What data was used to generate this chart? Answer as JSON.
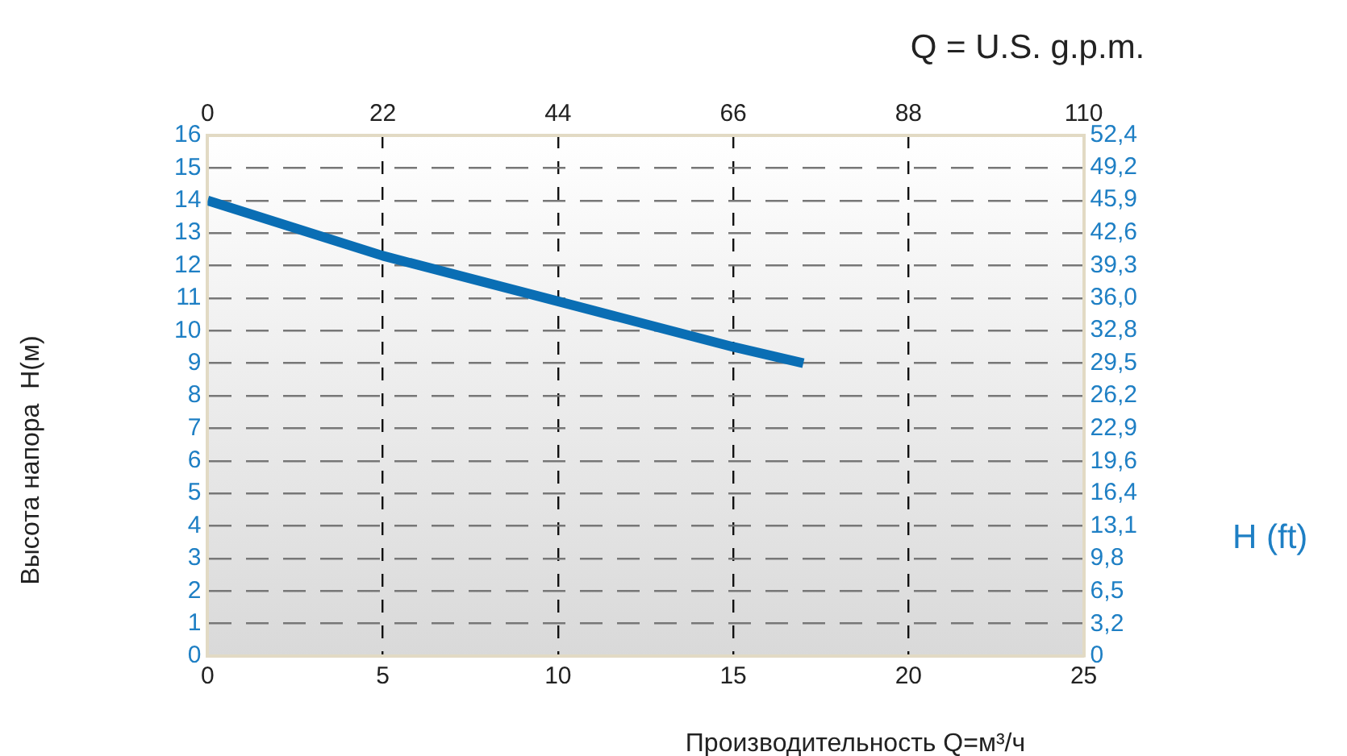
{
  "chart_data": {
    "type": "line",
    "xlabel": "Производительность Q=м³/ч",
    "ylabel": "Высота напора  H(м)",
    "x2label": "Q = U.S. g.p.m.",
    "y2label": "H (ft)",
    "x": [
      0,
      5,
      10,
      15,
      17
    ],
    "series": [
      {
        "color": "#0a6eb4",
        "values": [
          14,
          12.3,
          10.9,
          9.5,
          9
        ]
      }
    ],
    "xlim": [
      0,
      25
    ],
    "xticks": [
      0,
      5,
      10,
      15,
      20,
      25
    ],
    "x2lim": [
      0,
      110
    ],
    "x2ticks": [
      0,
      22,
      44,
      66,
      88,
      110
    ],
    "ylim": [
      0,
      16
    ],
    "yticks": [
      0,
      1,
      2,
      3,
      4,
      5,
      6,
      7,
      8,
      9,
      10,
      11,
      12,
      13,
      14,
      15,
      16
    ],
    "y2lim": [
      0,
      52.4
    ],
    "y2ticks": [
      0,
      {
        "value": 3.2,
        "label": "3,2"
      },
      {
        "value": 6.5,
        "label": "6,5"
      },
      {
        "value": 9.8,
        "label": "9,8"
      },
      {
        "value": 13.1,
        "label": "13,1"
      },
      {
        "value": 16.4,
        "label": "16,4"
      },
      {
        "value": 19.6,
        "label": "19,6"
      },
      {
        "value": 22.9,
        "label": "22,9"
      },
      {
        "value": 26.2,
        "label": "26,2"
      },
      {
        "value": 29.5,
        "label": "29,5"
      },
      {
        "value": 32.8,
        "label": "32,8"
      },
      {
        "value": 36.0,
        "label": "36,0"
      },
      {
        "value": 39.3,
        "label": "39,3"
      },
      {
        "value": 42.6,
        "label": "42,6"
      },
      {
        "value": 45.9,
        "label": "45,9"
      },
      {
        "value": 49.2,
        "label": "49,2"
      },
      {
        "value": 52.4,
        "label": "52,4"
      }
    ],
    "grid": true
  }
}
